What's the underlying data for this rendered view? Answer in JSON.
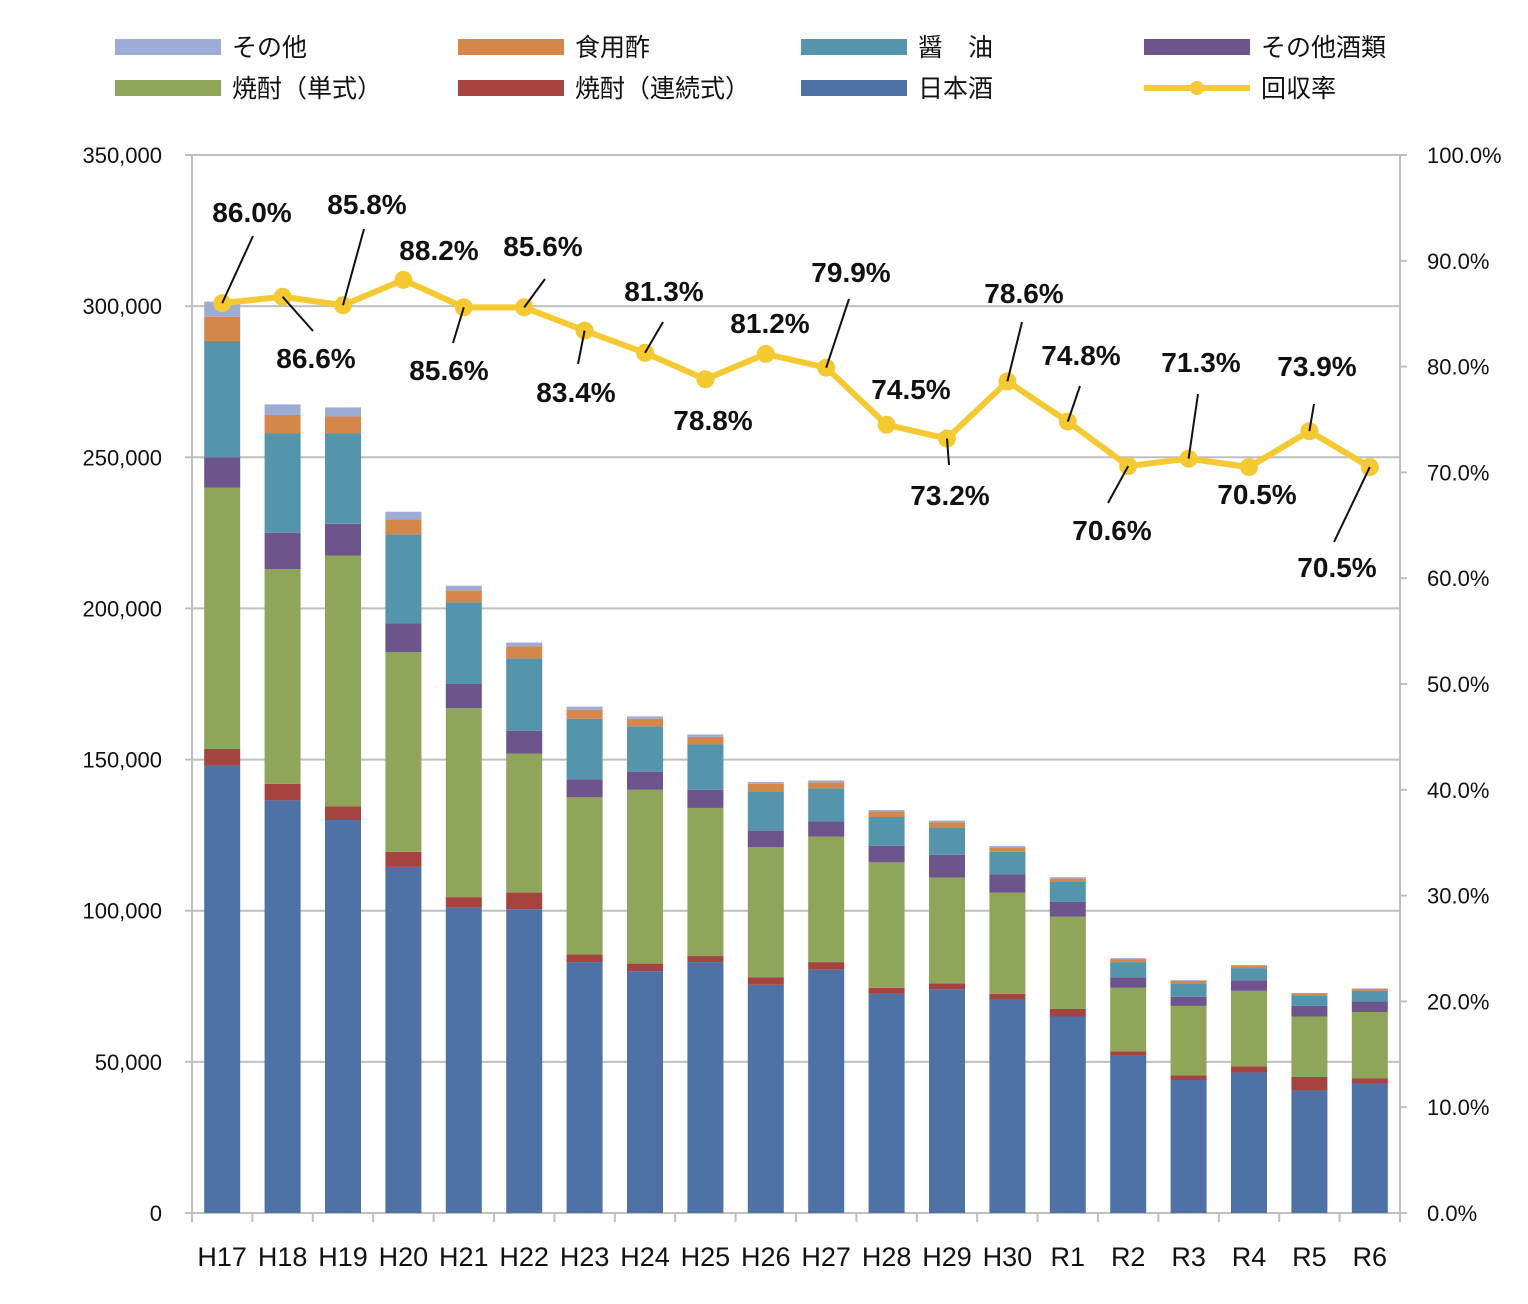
{
  "chart_data": {
    "type": "bar",
    "stacked": true,
    "title": "",
    "xlabel": "",
    "ylabel": "",
    "ylim": [
      0,
      350000
    ],
    "y2lim": [
      0,
      1.0
    ],
    "grid": true,
    "legend_position": "top",
    "y_ticks": [
      "350,000",
      "300,000",
      "250,000",
      "200,000",
      "150,000",
      "100,000",
      "50,000",
      "0"
    ],
    "y2_ticks": [
      "100.0%",
      "90.0%",
      "80.0%",
      "70.0%",
      "60.0%",
      "50.0%",
      "40.0%",
      "30.0%",
      "20.0%",
      "10.0%",
      "0.0%"
    ],
    "categories": [
      "H17",
      "H18",
      "H19",
      "H20",
      "H21",
      "H22",
      "H23",
      "H24",
      "H25",
      "H26",
      "H27",
      "H28",
      "H29",
      "H30",
      "R1",
      "R2",
      "R3",
      "R4",
      "R5",
      "R6"
    ],
    "series": [
      {
        "name": "日本酒",
        "color": "#4e71a6",
        "values": [
          148000,
          136500,
          130000,
          114500,
          101000,
          100500,
          83000,
          80000,
          83000,
          75500,
          80500,
          72500,
          74000,
          70500,
          65000,
          52000,
          44000,
          46500,
          40500,
          43000
        ]
      },
      {
        "name": "焼酎（連続式）",
        "color": "#a4433f",
        "values": [
          5500,
          5500,
          4500,
          5000,
          3500,
          5500,
          2500,
          2500,
          2000,
          2500,
          2500,
          2000,
          2000,
          2000,
          2500,
          1500,
          1500,
          2000,
          4500,
          1500
        ]
      },
      {
        "name": "焼酎（単式）",
        "color": "#8fa55a",
        "values": [
          86500,
          71000,
          83000,
          66000,
          62500,
          46000,
          52000,
          57500,
          49000,
          43000,
          41500,
          41500,
          35000,
          33500,
          30500,
          21000,
          23000,
          25000,
          20000,
          22000
        ]
      },
      {
        "name": "その他酒類",
        "color": "#6e548d",
        "values": [
          10000,
          12000,
          10500,
          9500,
          8000,
          7500,
          6000,
          6000,
          6000,
          5500,
          5000,
          5500,
          7500,
          6000,
          5000,
          3500,
          3000,
          3500,
          3500,
          3500
        ]
      },
      {
        "name": "醤　油",
        "color": "#5495ac",
        "values": [
          38500,
          33000,
          30000,
          29500,
          27000,
          24000,
          20000,
          15000,
          15000,
          13000,
          11000,
          9500,
          9000,
          7500,
          6500,
          5000,
          4500,
          4000,
          3500,
          3500
        ]
      },
      {
        "name": "食用酢",
        "color": "#d4864b",
        "values": [
          8000,
          6000,
          5500,
          5000,
          4000,
          4000,
          3000,
          2500,
          2500,
          2500,
          2000,
          1800,
          1800,
          1500,
          1200,
          1000,
          800,
          800,
          600,
          600
        ]
      },
      {
        "name": "その他",
        "color": "#9cacd4",
        "values": [
          5000,
          3500,
          3000,
          2500,
          1500,
          1200,
          1000,
          800,
          800,
          600,
          600,
          500,
          500,
          400,
          400,
          300,
          250,
          250,
          200,
          200
        ]
      }
    ],
    "line": {
      "name": "回収率",
      "color": "#f4c932",
      "axis": "right",
      "values": [
        0.86,
        0.866,
        0.858,
        0.882,
        0.856,
        0.856,
        0.834,
        0.813,
        0.788,
        0.812,
        0.799,
        0.745,
        0.732,
        0.786,
        0.748,
        0.706,
        0.713,
        0.705,
        0.739,
        0.705
      ],
      "labels": [
        "86.0%",
        "86.6%",
        "85.8%",
        "88.2%",
        "85.6%",
        "85.6%",
        "83.4%",
        "81.3%",
        "78.8%",
        "81.2%",
        "79.9%",
        "74.5%",
        "73.2%",
        "78.6%",
        "74.8%",
        "70.6%",
        "71.3%",
        "70.5%",
        "73.9%",
        "70.5%"
      ]
    },
    "legend": [
      "その他",
      "食用酢",
      "醤　油",
      "その他酒類",
      "焼酎（単式）",
      "焼酎（連続式）",
      "日本酒",
      "回収率"
    ]
  }
}
